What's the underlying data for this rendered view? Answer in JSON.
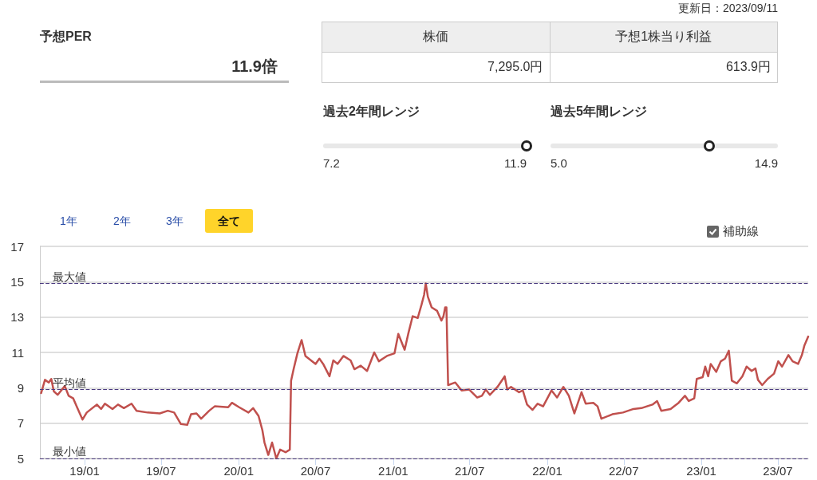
{
  "chart_data": [
    {
      "type": "other",
      "title": "予想PER",
      "annotations": [
        "更新日：2023/09/11",
        "11.9倍",
        "株価",
        "予想1株当り利益",
        "7,295.0円",
        "613.9円",
        "過去2年間レンジ",
        "7.2",
        "11.9",
        "過去5年間レンジ",
        "5.0",
        "14.9"
      ]
    },
    {
      "type": "line",
      "xlim": [
        "2018-09-17",
        "2023-09-11"
      ],
      "xticks": [
        {
          "value": "2019-01-01",
          "label": "19/01"
        },
        {
          "value": "2019-07-01",
          "label": "19/07"
        },
        {
          "value": "2020-01-01",
          "label": "20/01"
        },
        {
          "value": "2020-07-01",
          "label": "20/07"
        },
        {
          "value": "2021-01-01",
          "label": "21/01"
        },
        {
          "value": "2021-07-01",
          "label": "21/07"
        },
        {
          "value": "2022-01-01",
          "label": "22/01"
        },
        {
          "value": "2022-07-01",
          "label": "22/07"
        },
        {
          "value": "2023-01-01",
          "label": "23/01"
        },
        {
          "value": "2023-07-01",
          "label": "23/07"
        }
      ],
      "ylim": [
        5,
        17
      ],
      "yticks": [
        5,
        7,
        9,
        11,
        13,
        15,
        17
      ],
      "grid": "y",
      "marker": "none",
      "line_style": "solid",
      "annotations": [
        "1年",
        "2年",
        "3年",
        "全て",
        "補助線"
      ],
      "ref_lines": [
        {
          "axis": "y",
          "value": 14.9,
          "label": "最大値",
          "color": "#4b3b80",
          "line_style": "dashed"
        },
        {
          "axis": "y",
          "value": 8.9,
          "label": "平均値",
          "color": "#4b3b80",
          "line_style": "dashed"
        },
        {
          "axis": "y",
          "value": 5.0,
          "label": "最小値",
          "color": "#4b3b80",
          "line_style": "dashed"
        }
      ],
      "series": [
        {
          "color": "#c0504d",
          "x": [
            "2018-09-20",
            "2018-09-29",
            "2018-10-08",
            "2018-10-14",
            "2018-10-20",
            "2018-10-29",
            "2018-11-15",
            "2018-11-24",
            "2018-12-05",
            "2018-12-14",
            "2018-12-27",
            "2019-01-06",
            "2019-01-30",
            "2019-02-09",
            "2019-02-18",
            "2019-03-08",
            "2019-03-21",
            "2019-04-04",
            "2019-04-22",
            "2019-05-04",
            "2019-05-30",
            "2019-06-28",
            "2019-07-17",
            "2019-08-01",
            "2019-08-17",
            "2019-09-01",
            "2019-09-10",
            "2019-09-23",
            "2019-10-04",
            "2019-10-23",
            "2019-11-05",
            "2019-12-07",
            "2019-12-16",
            "2020-01-02",
            "2020-01-24",
            "2020-02-04",
            "2020-02-17",
            "2020-02-26",
            "2020-03-02",
            "2020-03-11",
            "2020-03-20",
            "2020-03-30",
            "2020-04-08",
            "2020-04-21",
            "2020-05-01",
            "2020-05-04",
            "2020-05-10",
            "2020-05-19",
            "2020-05-29",
            "2020-06-07",
            "2020-07-01",
            "2020-07-10",
            "2020-07-19",
            "2020-08-03",
            "2020-08-12",
            "2020-08-22",
            "2020-09-05",
            "2020-09-22",
            "2020-10-01",
            "2020-10-16",
            "2020-10-31",
            "2020-11-17",
            "2020-11-28",
            "2020-12-17",
            "2021-01-04",
            "2021-01-13",
            "2021-01-28",
            "2021-02-06",
            "2021-02-16",
            "2021-02-28",
            "2021-03-09",
            "2021-03-15",
            "2021-03-19",
            "2021-03-24",
            "2021-04-02",
            "2021-04-15",
            "2021-04-25",
            "2021-04-30",
            "2021-05-04",
            "2021-05-07",
            "2021-05-11",
            "2021-05-28",
            "2021-06-12",
            "2021-06-30",
            "2021-07-19",
            "2021-07-30",
            "2021-08-08",
            "2021-08-18",
            "2021-09-05",
            "2021-09-22",
            "2021-09-28",
            "2021-10-07",
            "2021-10-26",
            "2021-11-04",
            "2021-11-14",
            "2021-11-27",
            "2021-12-09",
            "2021-12-22",
            "2022-01-11",
            "2022-01-24",
            "2022-02-08",
            "2022-02-21",
            "2022-03-06",
            "2022-03-23",
            "2022-04-02",
            "2022-04-20",
            "2022-04-30",
            "2022-05-09",
            "2022-06-04",
            "2022-06-29",
            "2022-07-24",
            "2022-08-12",
            "2022-09-07",
            "2022-09-18",
            "2022-09-28",
            "2022-10-20",
            "2022-11-08",
            "2022-11-23",
            "2022-12-02",
            "2022-12-15",
            "2022-12-21",
            "2023-01-04",
            "2023-01-10",
            "2023-01-17",
            "2023-01-23",
            "2023-02-05",
            "2023-02-16",
            "2023-02-26",
            "2023-03-07",
            "2023-03-14",
            "2023-03-26",
            "2023-04-08",
            "2023-04-18",
            "2023-04-30",
            "2023-05-09",
            "2023-05-15",
            "2023-05-25",
            "2023-06-07",
            "2023-06-22",
            "2023-07-02",
            "2023-07-11",
            "2023-07-26",
            "2023-08-05",
            "2023-08-18",
            "2023-08-27",
            "2023-09-02",
            "2023-09-11"
          ],
          "values": [
            8.7,
            9.45,
            9.3,
            9.5,
            8.8,
            8.6,
            9.1,
            8.55,
            8.4,
            7.9,
            7.2,
            7.6,
            8.05,
            7.8,
            8.1,
            7.8,
            8.05,
            7.85,
            8.1,
            7.7,
            7.6,
            7.55,
            7.7,
            7.6,
            6.95,
            6.9,
            7.5,
            7.55,
            7.25,
            7.7,
            7.95,
            7.9,
            8.15,
            7.9,
            7.6,
            7.85,
            7.4,
            6.6,
            5.9,
            5.2,
            5.9,
            5.0,
            5.5,
            5.35,
            5.5,
            9.4,
            10.05,
            10.95,
            11.7,
            10.8,
            10.35,
            10.65,
            10.35,
            9.65,
            10.55,
            10.35,
            10.8,
            10.55,
            10.05,
            10.25,
            9.95,
            11.0,
            10.5,
            10.8,
            10.95,
            12.05,
            11.15,
            12.1,
            13.05,
            12.95,
            13.7,
            14.25,
            14.9,
            14.15,
            13.55,
            13.35,
            12.8,
            13.05,
            13.55,
            13.55,
            9.15,
            9.3,
            8.85,
            8.9,
            8.45,
            8.55,
            8.9,
            8.6,
            9.05,
            9.65,
            8.9,
            9.05,
            8.75,
            8.85,
            8.05,
            7.75,
            8.1,
            7.95,
            8.85,
            8.45,
            9.05,
            8.55,
            7.55,
            8.75,
            8.1,
            8.15,
            7.95,
            7.25,
            7.5,
            7.6,
            7.8,
            7.85,
            8.05,
            8.25,
            7.7,
            7.8,
            8.15,
            8.55,
            8.25,
            8.4,
            9.5,
            9.6,
            10.2,
            9.65,
            10.35,
            9.9,
            10.5,
            10.65,
            11.1,
            9.4,
            9.25,
            9.65,
            10.2,
            9.95,
            10.1,
            9.45,
            9.15,
            9.5,
            9.8,
            10.5,
            10.2,
            10.85,
            10.5,
            10.35,
            10.85,
            11.4,
            11.9
          ]
        }
      ]
    }
  ]
}
